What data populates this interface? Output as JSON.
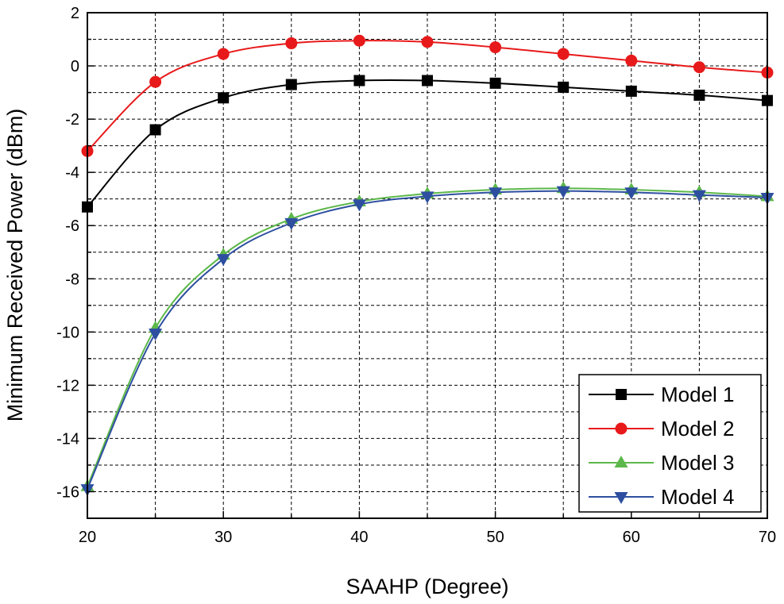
{
  "chart_data": {
    "type": "line",
    "title": "",
    "xlabel": "SAAHP (Degree)",
    "ylabel": "Minimum Received Power (dBm)",
    "xlim": [
      20,
      70
    ],
    "ylim": [
      -17,
      2
    ],
    "xticks": [
      20,
      30,
      40,
      50,
      60,
      70
    ],
    "yticks": [
      2,
      0,
      -2,
      -4,
      -6,
      -8,
      -10,
      -12,
      -14,
      -16
    ],
    "grid": true,
    "legend_position": "bottom-right",
    "x": [
      20,
      25,
      30,
      35,
      40,
      45,
      50,
      55,
      60,
      65,
      70
    ],
    "series": [
      {
        "name": "Model 1",
        "color": "#000000",
        "marker": "square",
        "values": [
          -5.3,
          -2.4,
          -1.2,
          -0.7,
          -0.55,
          -0.55,
          -0.65,
          -0.8,
          -0.95,
          -1.1,
          -1.3
        ]
      },
      {
        "name": "Model 2",
        "color": "#e8191a",
        "marker": "circle",
        "values": [
          -3.2,
          -0.6,
          0.45,
          0.85,
          0.95,
          0.9,
          0.7,
          0.45,
          0.2,
          -0.05,
          -0.25
        ]
      },
      {
        "name": "Model 3",
        "color": "#5cb84a",
        "marker": "triangle-up",
        "values": [
          -15.8,
          -9.85,
          -7.1,
          -5.75,
          -5.1,
          -4.8,
          -4.65,
          -4.6,
          -4.65,
          -4.75,
          -4.9
        ]
      },
      {
        "name": "Model 4",
        "color": "#2e4fa0",
        "marker": "triangle-down",
        "values": [
          -15.9,
          -10.05,
          -7.25,
          -5.9,
          -5.2,
          -4.9,
          -4.75,
          -4.7,
          -4.75,
          -4.85,
          -4.95
        ]
      }
    ]
  }
}
